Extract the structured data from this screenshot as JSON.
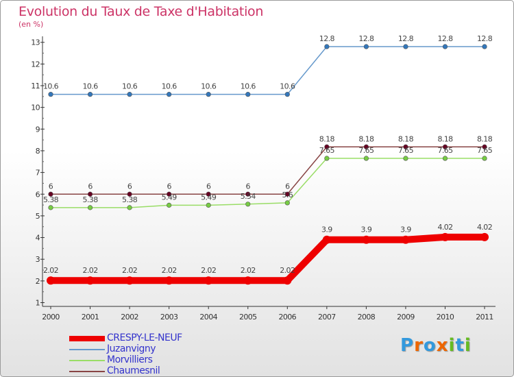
{
  "chart_data": {
    "type": "line",
    "title": "Evolution du Taux de Taxe d'Habitation",
    "subtitle": "(en %)",
    "xlabel": "",
    "ylabel": "",
    "ylim": [
      1,
      13
    ],
    "grid": false,
    "legend_position": "bottom-left",
    "categories": [
      "2000",
      "2001",
      "2002",
      "2003",
      "2004",
      "2005",
      "2006",
      "2007",
      "2008",
      "2009",
      "2010",
      "2011"
    ],
    "y_ticks": [
      "1",
      "2",
      "3",
      "4",
      "5",
      "6",
      "7",
      "8",
      "9",
      "10",
      "11",
      "12",
      "13"
    ],
    "series": [
      {
        "name": "CRESPY-LE-NEUF",
        "color": "#ee0000",
        "thickness": "heavy",
        "values": [
          2.02,
          2.02,
          2.02,
          2.02,
          2.02,
          2.02,
          2.02,
          3.9,
          3.9,
          3.9,
          4.02,
          4.02
        ],
        "labels": [
          "2.02",
          "2.02",
          "2.02",
          "2.02",
          "2.02",
          "2.02",
          "2.02",
          "3.9",
          "3.9",
          "3.9",
          "4.02",
          "4.02"
        ]
      },
      {
        "name": "Juzanvigny",
        "color": "#6699cc",
        "marker_color": "#3377bb",
        "thickness": "thin",
        "values": [
          10.6,
          10.6,
          10.6,
          10.6,
          10.6,
          10.6,
          10.6,
          12.8,
          12.8,
          12.8,
          12.8,
          12.8
        ],
        "labels": [
          "10.6",
          "10.6",
          "10.6",
          "10.6",
          "10.6",
          "10.6",
          "10.6",
          "12.8",
          "12.8",
          "12.8",
          "12.8",
          "12.8"
        ]
      },
      {
        "name": "Morvilliers",
        "color": "#99dd66",
        "marker_color": "#77cc44",
        "thickness": "thin",
        "values": [
          5.38,
          5.38,
          5.38,
          5.49,
          5.49,
          5.54,
          5.6,
          7.65,
          7.65,
          7.65,
          7.65,
          7.65
        ],
        "labels": [
          "5.38",
          "5.38",
          "5.38",
          "5.49",
          "5.49",
          "5.54",
          "5.6",
          "7.65",
          "7.65",
          "7.65",
          "7.65",
          "7.65"
        ]
      },
      {
        "name": "Chaumesnil",
        "color": "#884444",
        "marker_color": "#660022",
        "thickness": "thin",
        "values": [
          6,
          6,
          6,
          6,
          6,
          6,
          6,
          8.18,
          8.18,
          8.18,
          8.18,
          8.18
        ],
        "labels": [
          "6",
          "6",
          "6",
          "6",
          "6",
          "6",
          "6",
          "8.18",
          "8.18",
          "8.18",
          "8.18",
          "8.18"
        ]
      }
    ]
  },
  "brand": {
    "text": "Proxiti",
    "colors": [
      "#3399dd",
      "#ee6600",
      "#3399dd",
      "#ee6600",
      "#66bb22",
      "#3399dd",
      "#66bb22"
    ]
  }
}
